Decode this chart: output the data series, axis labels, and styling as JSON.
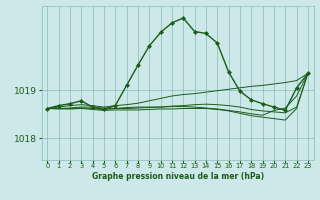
{
  "title": "Graphe pression niveau de la mer (hPa)",
  "bg_color": "#cce8e8",
  "grid_color": "#88bbbb",
  "line_color": "#1a5c1a",
  "ylim": [
    1017.55,
    1020.75
  ],
  "yticks": [
    1018.0,
    1019.0
  ],
  "xlim": [
    -0.5,
    23.5
  ],
  "xticks": [
    0,
    1,
    2,
    3,
    4,
    5,
    6,
    7,
    8,
    9,
    10,
    11,
    12,
    13,
    14,
    15,
    16,
    17,
    18,
    19,
    20,
    21,
    22,
    23
  ],
  "main_y": [
    1018.62,
    1018.68,
    1018.72,
    1018.78,
    1018.65,
    1018.6,
    1018.68,
    1019.1,
    1019.52,
    1019.92,
    1020.2,
    1020.4,
    1020.5,
    1020.22,
    1020.18,
    1019.98,
    1019.38,
    1018.98,
    1018.8,
    1018.72,
    1018.65,
    1018.58,
    1019.05,
    1019.35
  ],
  "line1_y": [
    1018.62,
    1018.65,
    1018.68,
    1018.7,
    1018.68,
    1018.65,
    1018.68,
    1018.7,
    1018.73,
    1018.78,
    1018.83,
    1018.88,
    1018.91,
    1018.93,
    1018.96,
    1018.99,
    1019.02,
    1019.05,
    1019.08,
    1019.1,
    1019.13,
    1019.16,
    1019.2,
    1019.35
  ],
  "line2_y": [
    1018.62,
    1018.62,
    1018.62,
    1018.63,
    1018.62,
    1018.6,
    1018.62,
    1018.62,
    1018.63,
    1018.64,
    1018.65,
    1018.67,
    1018.68,
    1018.7,
    1018.71,
    1018.7,
    1018.68,
    1018.65,
    1018.6,
    1018.57,
    1018.55,
    1018.53,
    1018.65,
    1019.35
  ],
  "line3_y": [
    1018.62,
    1018.61,
    1018.61,
    1018.62,
    1018.6,
    1018.58,
    1018.59,
    1018.59,
    1018.59,
    1018.6,
    1018.61,
    1018.61,
    1018.62,
    1018.62,
    1018.62,
    1018.6,
    1018.57,
    1018.52,
    1018.47,
    1018.44,
    1018.41,
    1018.38,
    1018.62,
    1019.35
  ],
  "line4_y": [
    1018.62,
    1018.62,
    1018.63,
    1018.65,
    1018.65,
    1018.63,
    1018.62,
    1018.64,
    1018.65,
    1018.65,
    1018.65,
    1018.66,
    1018.66,
    1018.65,
    1018.63,
    1018.61,
    1018.58,
    1018.55,
    1018.51,
    1018.48,
    1018.58,
    1018.63,
    1018.88,
    1019.35
  ]
}
